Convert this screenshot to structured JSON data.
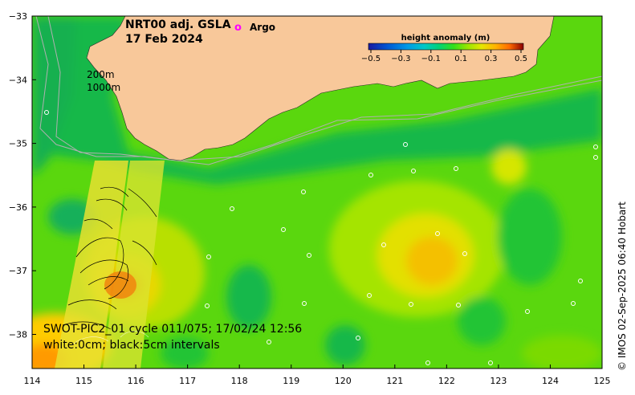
{
  "title": {
    "product": "NRT00 adj. GSLA",
    "date": "17 Feb 2024"
  },
  "legend": {
    "argo_marker": "o",
    "argo_label": "Argo",
    "colorbar_title": "height anomaly (m)",
    "colorbar_ticks": [
      "−0.5",
      "−0.3",
      "−0.1",
      "0.1",
      "0.3",
      "0.5"
    ],
    "colors": [
      "#1a1aa0",
      "#0055d4",
      "#0099e6",
      "#00c8c8",
      "#00d27a",
      "#33e01a",
      "#99e600",
      "#e6e600",
      "#ffb300",
      "#ff6a00",
      "#d91a00",
      "#8b0000"
    ]
  },
  "isobaths": {
    "label_200": "200m",
    "label_1000": "1000m"
  },
  "swot": {
    "line1": "SWOT-PIC2_01 cycle 011/075; 17/02/24 12:56",
    "line2": "white:0cm; black:5cm intervals"
  },
  "axes": {
    "x_ticks": [
      "114",
      "115",
      "116",
      "117",
      "118",
      "119",
      "120",
      "121",
      "122",
      "123",
      "124",
      "125"
    ],
    "y_ticks": [
      "−33",
      "−34",
      "−35",
      "−36",
      "−37",
      "−38"
    ]
  },
  "credit": "© IMOS 02-Sep-2025 06:40 Hobart",
  "map_colors": {
    "land": "#f8c89a",
    "sea_base": "#5ad70e",
    "argo": "#ff00ff"
  }
}
